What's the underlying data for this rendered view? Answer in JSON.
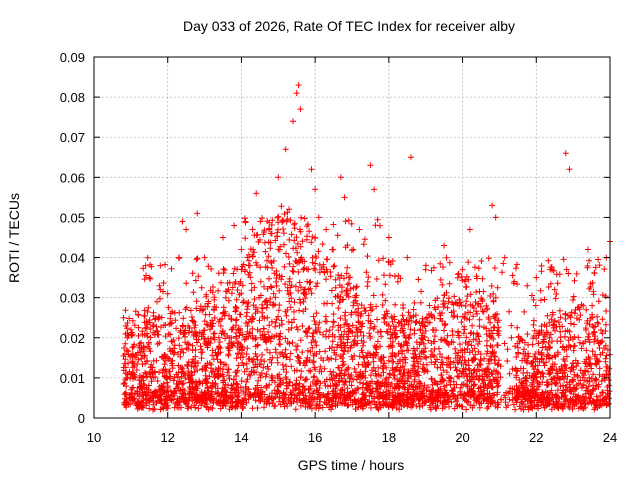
{
  "chart_data": {
    "type": "scatter",
    "title": "Day 033 of 2026, Rate Of TEC Index for receiver alby",
    "xlabel": "GPS time / hours",
    "ylabel": "ROTI / TECUs",
    "xlim": [
      10,
      24
    ],
    "ylim": [
      0,
      0.09
    ],
    "xticks": [
      10,
      12,
      14,
      16,
      18,
      20,
      22,
      24
    ],
    "xtick_labels": [
      "10",
      "12",
      "14",
      "16",
      "18",
      "20",
      "22",
      "24"
    ],
    "yticks": [
      0,
      0.01,
      0.02,
      0.03,
      0.04,
      0.05,
      0.06,
      0.07,
      0.08,
      0.09
    ],
    "ytick_labels": [
      "0",
      "0.01",
      "0.02",
      "0.03",
      "0.04",
      "0.05",
      "0.06",
      "0.07",
      "0.08",
      "0.09"
    ],
    "grid": true,
    "marker": "plus",
    "marker_color": "#ff0000",
    "series": [
      {
        "name": "ROTI",
        "note": "dense cloud of points from ~10.8 h to 24 h; representative upper-envelope samples listed",
        "x": [
          10.8,
          10.9,
          11.0,
          11.4,
          11.5,
          11.8,
          12.0,
          12.3,
          12.4,
          12.5,
          12.8,
          13.0,
          13.5,
          13.8,
          14.0,
          14.3,
          14.4,
          14.8,
          15.0,
          15.2,
          15.4,
          15.5,
          15.55,
          15.6,
          15.9,
          16.0,
          16.1,
          16.3,
          16.7,
          16.8,
          17.2,
          17.5,
          17.6,
          18.0,
          18.5,
          18.6,
          19.0,
          19.5,
          20.0,
          20.2,
          20.8,
          20.9,
          21.4,
          22.0,
          22.5,
          22.8,
          22.9,
          23.4,
          23.9,
          24.0
        ],
        "y": [
          0.025,
          0.02,
          0.022,
          0.038,
          0.035,
          0.032,
          0.031,
          0.04,
          0.049,
          0.047,
          0.051,
          0.04,
          0.045,
          0.048,
          0.042,
          0.047,
          0.056,
          0.046,
          0.06,
          0.067,
          0.074,
          0.081,
          0.083,
          0.077,
          0.062,
          0.057,
          0.05,
          0.047,
          0.06,
          0.055,
          0.047,
          0.063,
          0.057,
          0.045,
          0.04,
          0.065,
          0.037,
          0.043,
          0.037,
          0.047,
          0.053,
          0.05,
          0.034,
          0.035,
          0.032,
          0.066,
          0.062,
          0.042,
          0.04,
          0.044
        ]
      }
    ]
  }
}
